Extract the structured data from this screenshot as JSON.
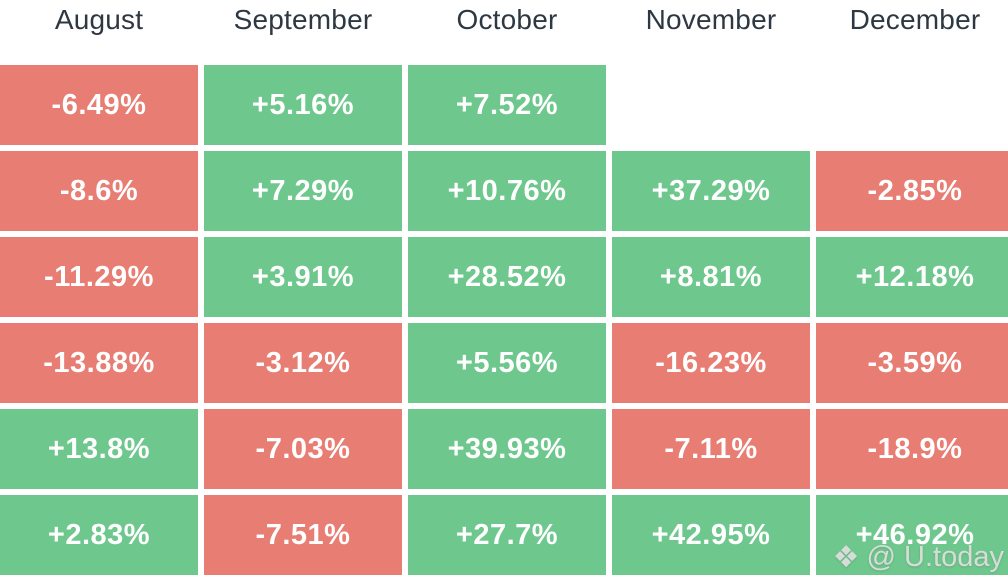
{
  "chart_data": {
    "type": "heatmap",
    "columns": [
      "August",
      "September",
      "October",
      "November",
      "December"
    ],
    "rows": [
      [
        -6.49,
        5.16,
        7.52,
        null,
        null
      ],
      [
        -8.6,
        7.29,
        10.76,
        37.29,
        -2.85
      ],
      [
        -11.29,
        3.91,
        28.52,
        8.81,
        12.18
      ],
      [
        -13.88,
        -3.12,
        5.56,
        -16.23,
        -3.59
      ],
      [
        13.8,
        -7.03,
        39.93,
        -7.11,
        -18.9
      ],
      [
        2.83,
        -7.51,
        27.7,
        42.95,
        46.92
      ]
    ],
    "value_format": "signed percent",
    "positive_color": "#6ec88d",
    "negative_color": "#e87d73",
    "legend_position": "none",
    "grid": false
  },
  "table": {
    "headers": [
      "August",
      "September",
      "October",
      "November",
      "December"
    ],
    "rows": [
      {
        "cells": [
          {
            "label": "-6.49%",
            "bg": "#e87d73"
          },
          {
            "label": "+5.16%",
            "bg": "#6ec88d"
          },
          {
            "label": "+7.52%",
            "bg": "#6ec88d"
          },
          {
            "label": "",
            "bg": ""
          },
          {
            "label": "",
            "bg": ""
          }
        ]
      },
      {
        "cells": [
          {
            "label": "-8.6%",
            "bg": "#e87d73"
          },
          {
            "label": "+7.29%",
            "bg": "#6ec88d"
          },
          {
            "label": "+10.76%",
            "bg": "#6ec88d"
          },
          {
            "label": "+37.29%",
            "bg": "#6ec88d"
          },
          {
            "label": "-2.85%",
            "bg": "#e87d73"
          }
        ]
      },
      {
        "cells": [
          {
            "label": "-11.29%",
            "bg": "#e87d73"
          },
          {
            "label": "+3.91%",
            "bg": "#6ec88d"
          },
          {
            "label": "+28.52%",
            "bg": "#6ec88d"
          },
          {
            "label": "+8.81%",
            "bg": "#6ec88d"
          },
          {
            "label": "+12.18%",
            "bg": "#6ec88d"
          }
        ]
      },
      {
        "cells": [
          {
            "label": "-13.88%",
            "bg": "#e87d73"
          },
          {
            "label": "-3.12%",
            "bg": "#e87d73"
          },
          {
            "label": "+5.56%",
            "bg": "#6ec88d"
          },
          {
            "label": "-16.23%",
            "bg": "#e87d73"
          },
          {
            "label": "-3.59%",
            "bg": "#e87d73"
          }
        ]
      },
      {
        "cells": [
          {
            "label": "+13.8%",
            "bg": "#6ec88d"
          },
          {
            "label": "-7.03%",
            "bg": "#e87d73"
          },
          {
            "label": "+39.93%",
            "bg": "#6ec88d"
          },
          {
            "label": "-7.11%",
            "bg": "#e87d73"
          },
          {
            "label": "-18.9%",
            "bg": "#e87d73"
          }
        ]
      },
      {
        "cells": [
          {
            "label": "+2.83%",
            "bg": "#6ec88d"
          },
          {
            "label": "-7.51%",
            "bg": "#e87d73"
          },
          {
            "label": "+27.7%",
            "bg": "#6ec88d"
          },
          {
            "label": "+42.95%",
            "bg": "#6ec88d"
          },
          {
            "label": "+46.92%",
            "bg": "#6ec88d"
          }
        ]
      }
    ]
  },
  "colors": {
    "positive": "#6ec88d",
    "negative": "#e87d73",
    "header_text": "#2e3842"
  },
  "watermark": {
    "icon_glyph": "❖",
    "text": "@ U.today"
  }
}
